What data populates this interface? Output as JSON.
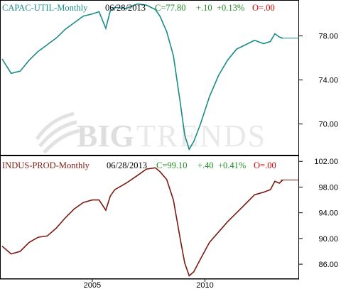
{
  "watermark": {
    "big": "BIG",
    "trends": "TRENDS"
  },
  "chart_data": [
    {
      "type": "line",
      "header": {
        "name": "CAPAC-UTIL-Monthly",
        "date": "06/28/2013",
        "close": "C=77.80",
        "change": "+.10",
        "pct": "+0.13%",
        "open": "O=.00"
      },
      "ylim": [
        67.2,
        81.2
      ],
      "yticks": [
        "70.00",
        "74.00",
        "78.00"
      ],
      "last_value": 77.8,
      "color": "#1a8a8a",
      "x": [
        2001.0,
        2001.4,
        2001.8,
        2002.2,
        2002.6,
        2003.0,
        2003.4,
        2003.8,
        2004.2,
        2004.6,
        2005.0,
        2005.3,
        2005.6,
        2005.8,
        2006.0,
        2006.5,
        2007.0,
        2007.4,
        2007.8,
        2008.0,
        2008.3,
        2008.6,
        2008.9,
        2009.1,
        2009.3,
        2009.5,
        2009.8,
        2010.2,
        2010.6,
        2011.0,
        2011.4,
        2011.8,
        2012.2,
        2012.6,
        2012.9,
        2013.1,
        2013.3,
        2013.45
      ],
      "y": [
        75.9,
        74.6,
        74.8,
        75.8,
        76.6,
        77.2,
        77.8,
        78.6,
        79.2,
        79.8,
        80.0,
        80.2,
        78.7,
        80.3,
        80.6,
        80.5,
        80.9,
        80.8,
        80.4,
        79.8,
        78.4,
        76.2,
        72.0,
        69.0,
        67.7,
        68.4,
        70.0,
        72.5,
        74.4,
        75.8,
        76.8,
        77.2,
        77.6,
        77.3,
        77.5,
        78.2,
        77.9,
        77.8
      ]
    },
    {
      "type": "line",
      "header": {
        "name": "INDUS-PROD-Monthly",
        "date": "06/28/2013",
        "close": "C=99.10",
        "change": "+.40",
        "pct": "+0.41%",
        "open": "O=.00"
      },
      "ylim": [
        83.8,
        102.8
      ],
      "yticks": [
        "86.00",
        "90.00",
        "94.00",
        "98.00",
        "102.00"
      ],
      "last_value": 99.1,
      "color": "#7a1a10",
      "xticks": [
        "2005",
        "2010"
      ],
      "xtick_values": [
        2005.0,
        2010.0
      ],
      "x": [
        2001.0,
        2001.4,
        2001.8,
        2002.2,
        2002.6,
        2003.0,
        2003.4,
        2003.8,
        2004.2,
        2004.6,
        2005.0,
        2005.3,
        2005.6,
        2005.8,
        2006.0,
        2006.5,
        2007.0,
        2007.4,
        2007.8,
        2008.0,
        2008.3,
        2008.6,
        2008.9,
        2009.1,
        2009.3,
        2009.5,
        2009.8,
        2010.2,
        2010.6,
        2011.0,
        2011.4,
        2011.8,
        2012.2,
        2012.6,
        2012.9,
        2013.1,
        2013.3,
        2013.45
      ],
      "y": [
        88.8,
        87.6,
        88.0,
        89.4,
        90.2,
        90.4,
        91.6,
        93.2,
        94.6,
        95.6,
        96.0,
        96.0,
        94.4,
        96.6,
        97.6,
        98.6,
        99.8,
        100.8,
        101.0,
        100.4,
        99.2,
        96.0,
        90.0,
        86.2,
        84.2,
        84.8,
        86.8,
        89.4,
        91.0,
        92.6,
        94.0,
        95.4,
        96.8,
        97.2,
        97.6,
        98.9,
        98.6,
        99.1
      ]
    }
  ]
}
